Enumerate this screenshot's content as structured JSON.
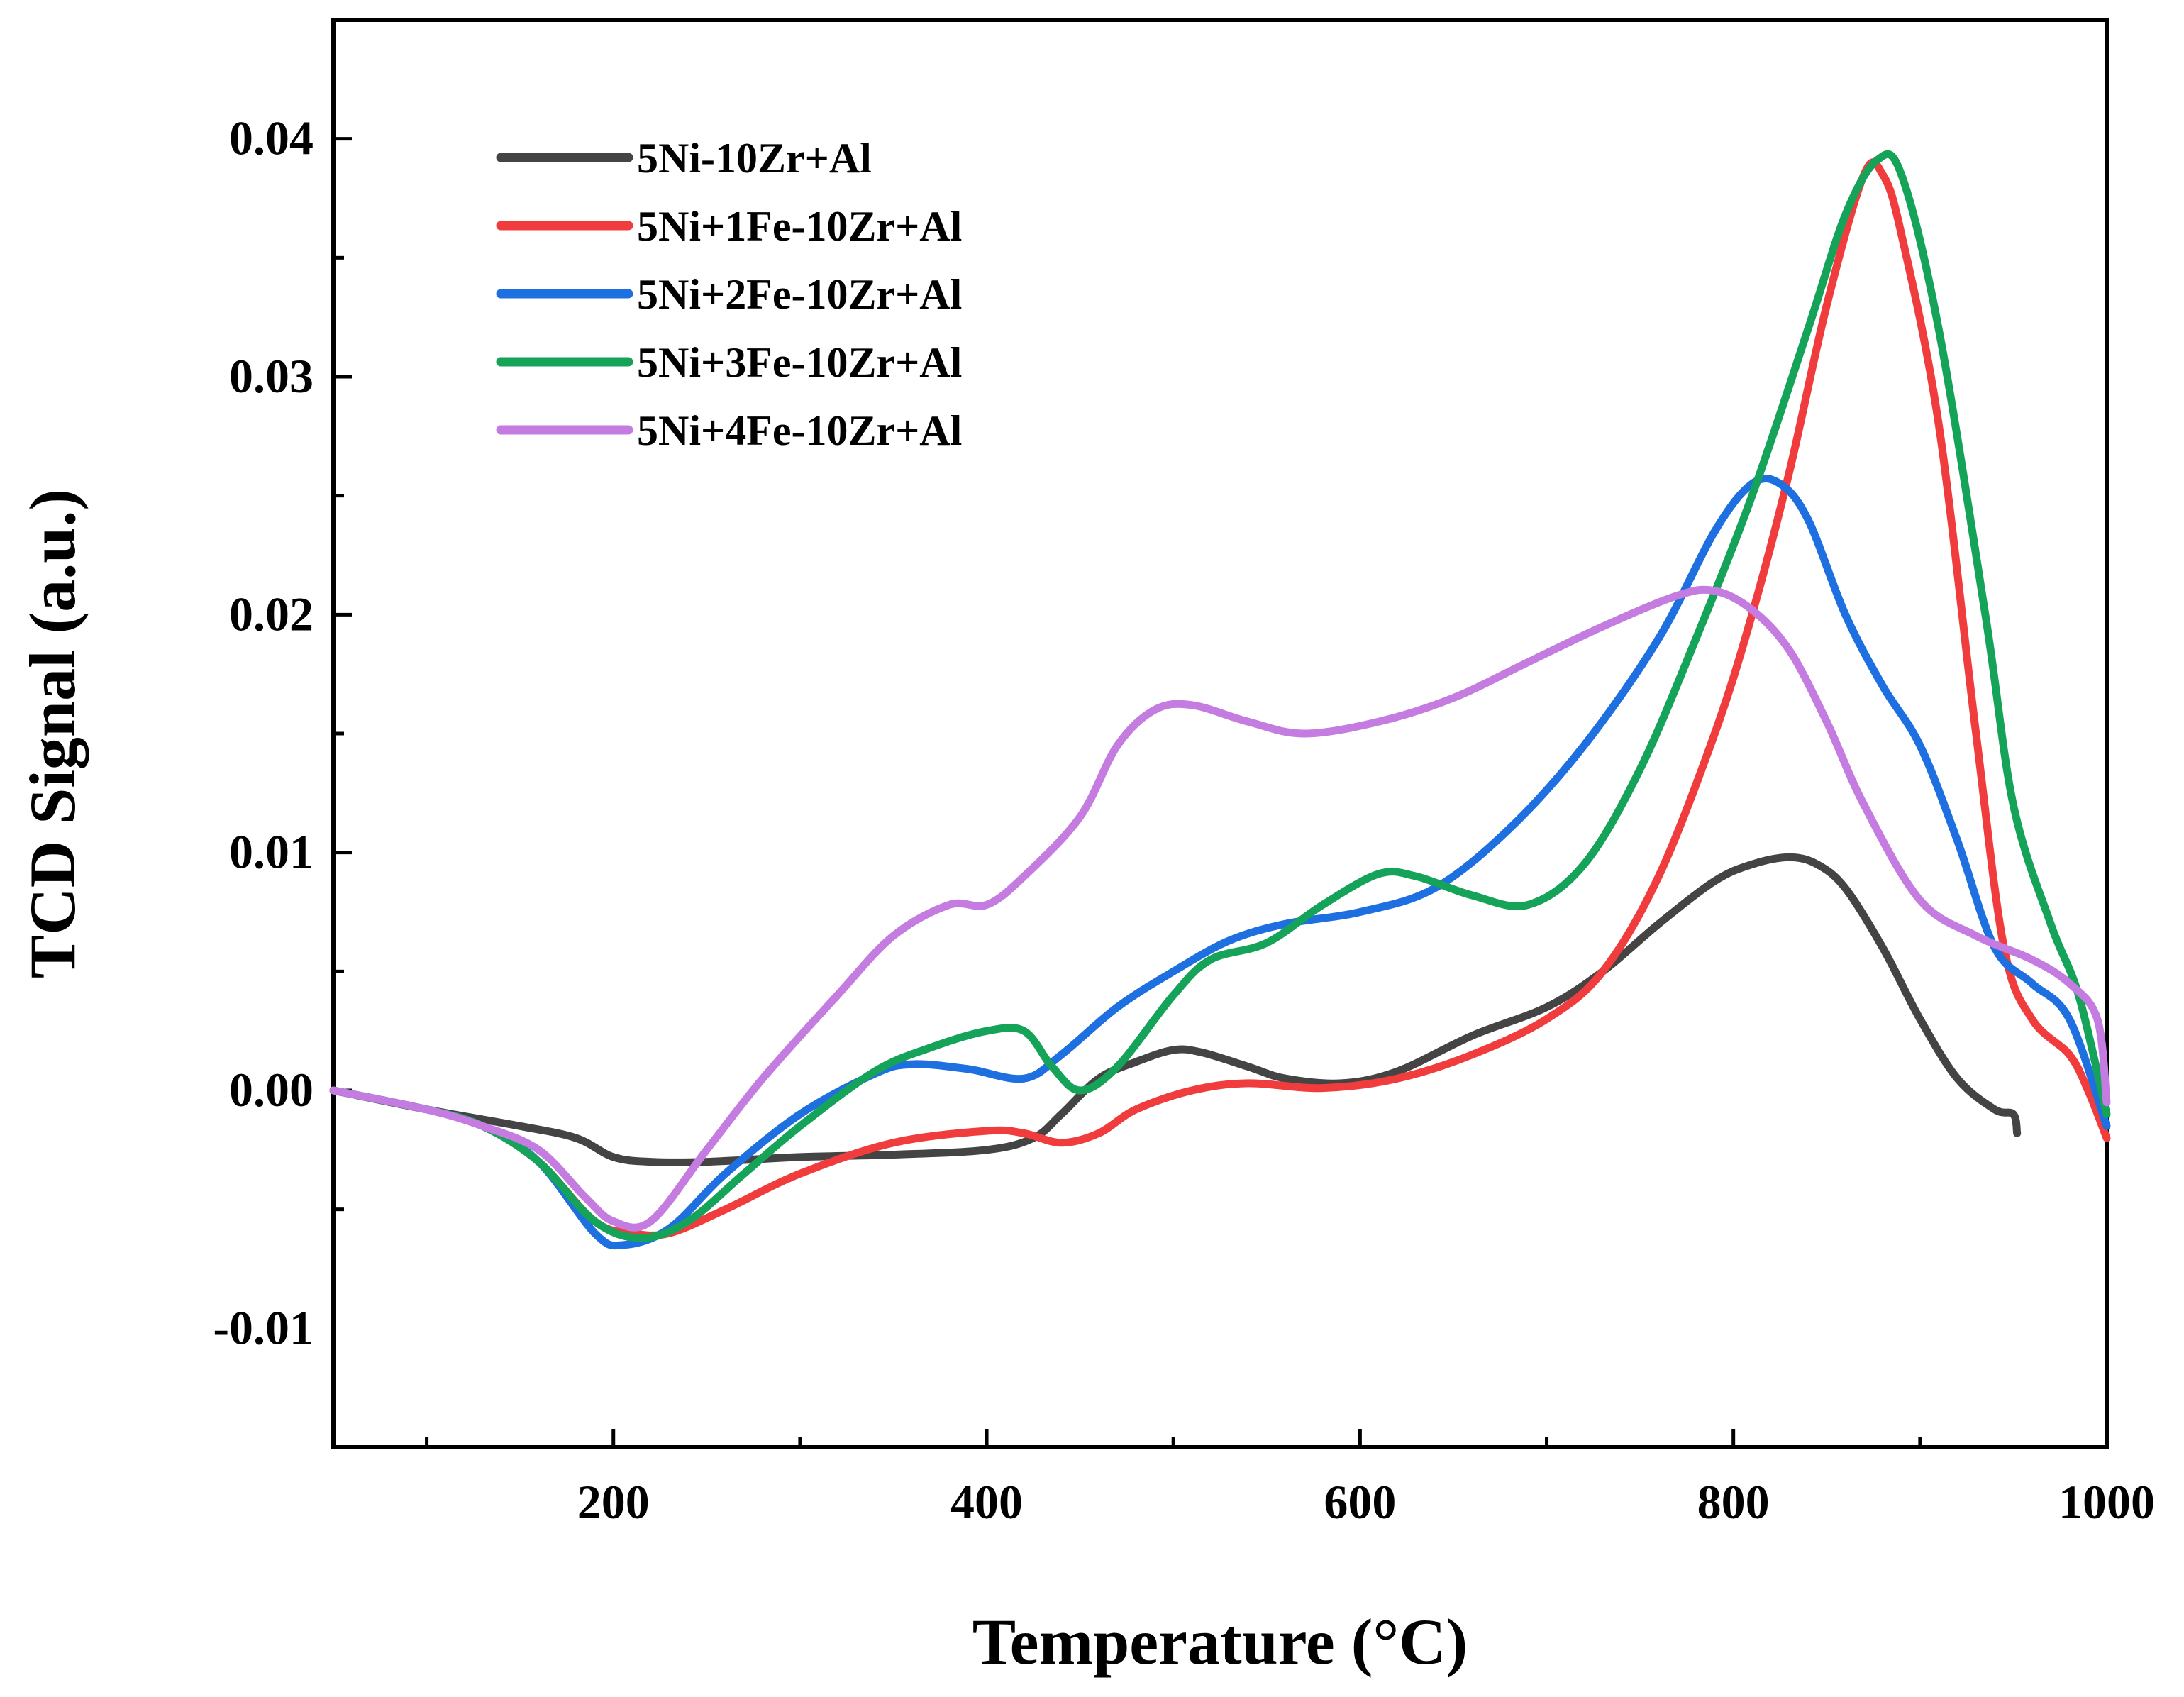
{
  "chart_data": {
    "type": "line",
    "title": "",
    "xlabel": "Temperature (°C)",
    "ylabel": "TCD Signal (a.u.)",
    "xlim": [
      50,
      1000
    ],
    "ylim": [
      -0.015,
      0.045
    ],
    "x_ticks": [
      200,
      400,
      600,
      800,
      1000
    ],
    "x_tick_labels": [
      "200",
      "400",
      "600",
      "800",
      "1000"
    ],
    "y_ticks": [
      -0.01,
      0.0,
      0.01,
      0.02,
      0.03,
      0.04
    ],
    "y_tick_labels": [
      "-0.01",
      "0.00",
      "0.01",
      "0.02",
      "0.03",
      "0.04"
    ],
    "grid": false,
    "legend_position": "top-left",
    "series": [
      {
        "name": "5Ni-10Zr+Al",
        "color": "#444444",
        "points": [
          [
            50,
            0.0
          ],
          [
            100,
            -0.0008
          ],
          [
            150,
            -0.0015
          ],
          [
            180,
            -0.002
          ],
          [
            200,
            -0.0028
          ],
          [
            220,
            -0.003
          ],
          [
            250,
            -0.003
          ],
          [
            300,
            -0.0028
          ],
          [
            350,
            -0.0027
          ],
          [
            400,
            -0.0025
          ],
          [
            425,
            -0.002
          ],
          [
            440,
            -0.001
          ],
          [
            460,
            0.0005
          ],
          [
            480,
            0.0012
          ],
          [
            500,
            0.0017
          ],
          [
            515,
            0.0016
          ],
          [
            540,
            0.001
          ],
          [
            560,
            0.0005
          ],
          [
            590,
            0.0003
          ],
          [
            620,
            0.0008
          ],
          [
            660,
            0.0023
          ],
          [
            700,
            0.0035
          ],
          [
            730,
            0.005
          ],
          [
            760,
            0.007
          ],
          [
            790,
            0.0088
          ],
          [
            810,
            0.0095
          ],
          [
            830,
            0.0098
          ],
          [
            845,
            0.0095
          ],
          [
            860,
            0.0085
          ],
          [
            880,
            0.006
          ],
          [
            900,
            0.003
          ],
          [
            920,
            0.0005
          ],
          [
            940,
            -0.0008
          ],
          [
            950,
            -0.001
          ],
          [
            952,
            -0.0018
          ]
        ]
      },
      {
        "name": "5Ni+1Fe-10Zr+Al",
        "color": "#f03c3c",
        "points": [
          [
            50,
            0.0
          ],
          [
            100,
            -0.0008
          ],
          [
            130,
            -0.0015
          ],
          [
            160,
            -0.003
          ],
          [
            190,
            -0.0055
          ],
          [
            210,
            -0.006
          ],
          [
            230,
            -0.006
          ],
          [
            260,
            -0.005
          ],
          [
            300,
            -0.0035
          ],
          [
            350,
            -0.0022
          ],
          [
            400,
            -0.0017
          ],
          [
            420,
            -0.0018
          ],
          [
            440,
            -0.0022
          ],
          [
            460,
            -0.0018
          ],
          [
            480,
            -0.0008
          ],
          [
            510,
            0.0
          ],
          [
            540,
            0.0003
          ],
          [
            580,
            0.0001
          ],
          [
            620,
            0.0005
          ],
          [
            660,
            0.0015
          ],
          [
            700,
            0.003
          ],
          [
            730,
            0.005
          ],
          [
            760,
            0.009
          ],
          [
            790,
            0.015
          ],
          [
            810,
            0.02
          ],
          [
            830,
            0.026
          ],
          [
            850,
            0.033
          ],
          [
            870,
            0.0385
          ],
          [
            880,
            0.0385
          ],
          [
            890,
            0.036
          ],
          [
            910,
            0.028
          ],
          [
            930,
            0.015
          ],
          [
            945,
            0.006
          ],
          [
            960,
            0.003
          ],
          [
            980,
            0.0015
          ],
          [
            990,
            0.0
          ],
          [
            1000,
            -0.002
          ]
        ]
      },
      {
        "name": "5Ni+2Fe-10Zr+Al",
        "color": "#1e6fe0",
        "points": [
          [
            50,
            0.0
          ],
          [
            100,
            -0.0008
          ],
          [
            130,
            -0.0015
          ],
          [
            160,
            -0.003
          ],
          [
            190,
            -0.006
          ],
          [
            205,
            -0.0065
          ],
          [
            230,
            -0.0058
          ],
          [
            260,
            -0.0035
          ],
          [
            300,
            -0.001
          ],
          [
            340,
            0.0007
          ],
          [
            360,
            0.0011
          ],
          [
            390,
            0.0009
          ],
          [
            420,
            0.0005
          ],
          [
            440,
            0.0015
          ],
          [
            470,
            0.0035
          ],
          [
            500,
            0.005
          ],
          [
            530,
            0.0063
          ],
          [
            560,
            0.007
          ],
          [
            600,
            0.0075
          ],
          [
            640,
            0.0085
          ],
          [
            680,
            0.011
          ],
          [
            720,
            0.0145
          ],
          [
            760,
            0.019
          ],
          [
            790,
            0.0235
          ],
          [
            810,
            0.0255
          ],
          [
            825,
            0.0255
          ],
          [
            840,
            0.024
          ],
          [
            860,
            0.02
          ],
          [
            880,
            0.017
          ],
          [
            900,
            0.0145
          ],
          [
            920,
            0.0105
          ],
          [
            940,
            0.006
          ],
          [
            960,
            0.0045
          ],
          [
            980,
            0.003
          ],
          [
            1000,
            -0.0015
          ]
        ]
      },
      {
        "name": "5Ni+3Fe-10Zr+Al",
        "color": "#15a35a",
        "points": [
          [
            50,
            0.0
          ],
          [
            100,
            -0.0008
          ],
          [
            130,
            -0.0015
          ],
          [
            160,
            -0.003
          ],
          [
            190,
            -0.0055
          ],
          [
            215,
            -0.0062
          ],
          [
            240,
            -0.0055
          ],
          [
            270,
            -0.0035
          ],
          [
            300,
            -0.0015
          ],
          [
            340,
            0.0008
          ],
          [
            370,
            0.0018
          ],
          [
            400,
            0.0025
          ],
          [
            420,
            0.0025
          ],
          [
            435,
            0.001
          ],
          [
            450,
            0.0
          ],
          [
            470,
            0.001
          ],
          [
            500,
            0.004
          ],
          [
            520,
            0.0055
          ],
          [
            550,
            0.0062
          ],
          [
            580,
            0.0078
          ],
          [
            610,
            0.0091
          ],
          [
            630,
            0.009
          ],
          [
            660,
            0.0082
          ],
          [
            690,
            0.0078
          ],
          [
            720,
            0.0095
          ],
          [
            750,
            0.0135
          ],
          [
            780,
            0.019
          ],
          [
            810,
            0.025
          ],
          [
            840,
            0.032
          ],
          [
            860,
            0.0368
          ],
          [
            877,
            0.0391
          ],
          [
            890,
            0.0385
          ],
          [
            910,
            0.032
          ],
          [
            935,
            0.02
          ],
          [
            950,
            0.012
          ],
          [
            970,
            0.007
          ],
          [
            985,
            0.004
          ],
          [
            1000,
            -0.001
          ]
        ]
      },
      {
        "name": "5Ni+4Fe-10Zr+Al",
        "color": "#c47ce0",
        "points": [
          [
            50,
            0.0
          ],
          [
            100,
            -0.0008
          ],
          [
            130,
            -0.0015
          ],
          [
            160,
            -0.0025
          ],
          [
            185,
            -0.0045
          ],
          [
            200,
            -0.0055
          ],
          [
            220,
            -0.0055
          ],
          [
            250,
            -0.0025
          ],
          [
            280,
            0.0005
          ],
          [
            320,
            0.004
          ],
          [
            350,
            0.0065
          ],
          [
            380,
            0.0078
          ],
          [
            400,
            0.0078
          ],
          [
            420,
            0.009
          ],
          [
            450,
            0.0115
          ],
          [
            470,
            0.0145
          ],
          [
            490,
            0.016
          ],
          [
            510,
            0.0162
          ],
          [
            540,
            0.0155
          ],
          [
            570,
            0.015
          ],
          [
            610,
            0.0155
          ],
          [
            650,
            0.0165
          ],
          [
            690,
            0.018
          ],
          [
            730,
            0.0195
          ],
          [
            770,
            0.0208
          ],
          [
            790,
            0.021
          ],
          [
            810,
            0.0202
          ],
          [
            830,
            0.0185
          ],
          [
            850,
            0.0155
          ],
          [
            870,
            0.012
          ],
          [
            900,
            0.008
          ],
          [
            930,
            0.0065
          ],
          [
            960,
            0.0055
          ],
          [
            980,
            0.0045
          ],
          [
            995,
            0.003
          ],
          [
            1000,
            -0.0005
          ]
        ]
      }
    ]
  }
}
